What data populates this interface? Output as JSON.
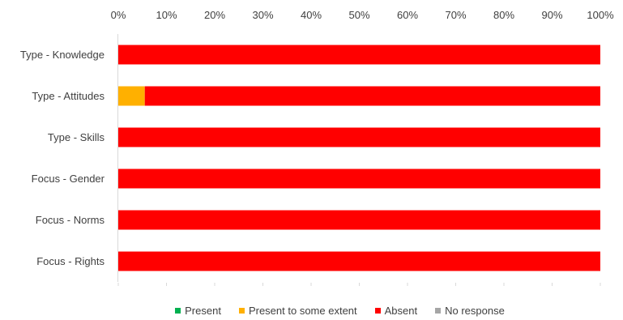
{
  "chart_data": {
    "type": "bar",
    "orientation": "horizontal",
    "stacked": "percent",
    "title": "",
    "xlabel": "",
    "ylabel": "",
    "xlim": [
      0,
      100
    ],
    "x_ticks": [
      "0%",
      "10%",
      "20%",
      "30%",
      "40%",
      "50%",
      "60%",
      "70%",
      "80%",
      "90%",
      "100%"
    ],
    "x_axis_position": "top",
    "grid": false,
    "legend_position": "bottom",
    "categories": [
      "Type - Knowledge",
      "Type - Attitudes",
      "Type - Skills",
      "Focus - Gender",
      "Focus - Norms",
      "Focus - Rights"
    ],
    "series": [
      {
        "name": "Present",
        "color": "#00b050",
        "values": [
          0,
          0,
          0,
          0,
          0,
          0
        ]
      },
      {
        "name": "Present to some extent",
        "color": "#ffb000",
        "values": [
          0,
          5.5,
          0,
          0,
          0,
          0
        ]
      },
      {
        "name": "Absent",
        "color": "#ff0000",
        "values": [
          100,
          94.5,
          100,
          100,
          100,
          100
        ]
      },
      {
        "name": "No response",
        "color": "#a6a6a6",
        "values": [
          0,
          0,
          0,
          0,
          0,
          0
        ]
      }
    ]
  }
}
